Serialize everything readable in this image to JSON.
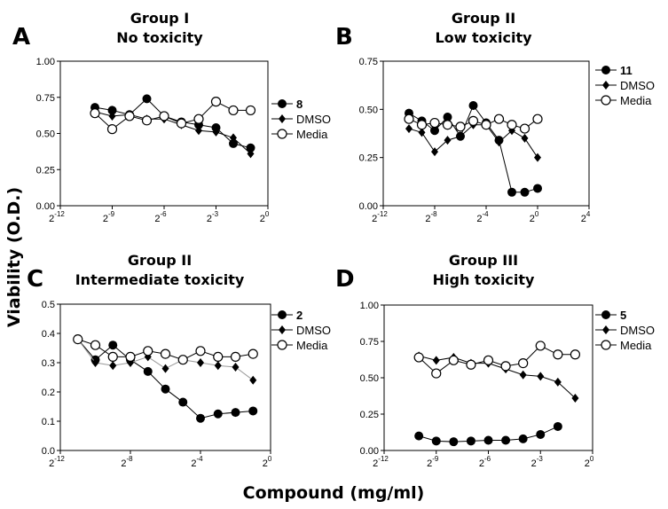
{
  "chart_data": [
    {
      "type": "line",
      "panel_letter": "A",
      "title": "Group I",
      "subtitle": "No toxicity",
      "xscale": "log2",
      "xlim_exp": [
        -12,
        0
      ],
      "xticks_exp": [
        -12,
        -9,
        -6,
        -3,
        0
      ],
      "ylim": [
        0,
        1
      ],
      "yticks": [
        "0.00",
        "0.25",
        "0.50",
        "0.75",
        "1.00"
      ],
      "x_exp": [
        -10,
        -9,
        -8,
        -7,
        -6,
        -5,
        -4,
        -3,
        -2,
        -1
      ],
      "series": [
        {
          "name": "8",
          "marker": "filled-circle",
          "values": [
            0.68,
            0.66,
            0.63,
            0.74,
            0.62,
            0.58,
            0.56,
            0.54,
            0.43,
            0.4
          ]
        },
        {
          "name": "DMSO",
          "marker": "diamond",
          "values": [
            0.65,
            0.62,
            0.63,
            0.6,
            0.6,
            0.56,
            0.52,
            0.51,
            0.47,
            0.36
          ]
        },
        {
          "name": "Media",
          "marker": "open-circle",
          "values": [
            0.64,
            0.53,
            0.62,
            0.59,
            0.62,
            0.57,
            0.6,
            0.72,
            0.66,
            0.66
          ]
        }
      ]
    },
    {
      "type": "line",
      "panel_letter": "B",
      "title": "Group II",
      "subtitle": "Low toxicity",
      "xscale": "log2",
      "xlim_exp": [
        -12,
        4
      ],
      "xticks_exp": [
        -12,
        -8,
        -4,
        0,
        4
      ],
      "ylim": [
        0,
        0.75
      ],
      "yticks": [
        "0.00",
        "0.25",
        "0.50",
        "0.75"
      ],
      "x_exp": [
        -10,
        -9,
        -8,
        -7,
        -6,
        -5,
        -4,
        -3,
        -2,
        -1,
        0
      ],
      "series": [
        {
          "name": "11",
          "marker": "filled-circle",
          "values": [
            0.48,
            0.44,
            0.39,
            0.46,
            0.36,
            0.52,
            0.43,
            0.34,
            0.07,
            0.07,
            0.09
          ]
        },
        {
          "name": "DMSO",
          "marker": "diamond",
          "values": [
            0.4,
            0.38,
            0.28,
            0.34,
            0.36,
            0.42,
            0.42,
            0.33,
            0.39,
            0.35,
            0.25
          ]
        },
        {
          "name": "Media",
          "marker": "open-circle",
          "values": [
            0.45,
            0.42,
            0.43,
            0.42,
            0.41,
            0.44,
            0.42,
            0.45,
            0.42,
            0.4,
            0.45
          ]
        }
      ]
    },
    {
      "type": "line",
      "panel_letter": "C",
      "title": "Group II",
      "subtitle": "Intermediate toxicity",
      "xscale": "log2",
      "xlim_exp": [
        -12,
        0
      ],
      "xticks_exp": [
        -12,
        -8,
        -4,
        0
      ],
      "ylim": [
        0,
        0.5
      ],
      "yticks": [
        "0.0",
        "0.1",
        "0.2",
        "0.3",
        "0.4",
        "0.5"
      ],
      "x_exp": [
        -11,
        -10,
        -9,
        -8,
        -7,
        -6,
        -5,
        -4,
        -3,
        -2,
        -1
      ],
      "series": [
        {
          "name": "2",
          "marker": "filled-circle",
          "values": [
            0.38,
            0.31,
            0.36,
            0.31,
            0.27,
            0.21,
            0.165,
            0.11,
            0.125,
            0.13,
            0.135
          ]
        },
        {
          "name": "DMSO",
          "marker": "diamond",
          "values": [
            0.38,
            0.3,
            0.29,
            0.3,
            0.32,
            0.28,
            0.31,
            0.3,
            0.29,
            0.285,
            0.24
          ]
        },
        {
          "name": "Media",
          "marker": "open-circle",
          "values": [
            0.38,
            0.36,
            0.32,
            0.32,
            0.34,
            0.33,
            0.31,
            0.34,
            0.32,
            0.32,
            0.33
          ]
        }
      ]
    },
    {
      "type": "line",
      "panel_letter": "D",
      "title": "Group III",
      "subtitle": "High toxicity",
      "xscale": "log2",
      "xlim_exp": [
        -12,
        0
      ],
      "xticks_exp": [
        -12,
        -9,
        -6,
        -3,
        0
      ],
      "ylim": [
        0,
        1
      ],
      "yticks": [
        "0.00",
        "0.25",
        "0.50",
        "0.75",
        "1.00"
      ],
      "x_exp": [
        -10,
        -9,
        -8,
        -7,
        -6,
        -5,
        -4,
        -3,
        -2,
        -1
      ],
      "series": [
        {
          "name": "5",
          "marker": "filled-circle",
          "values": [
            0.1,
            0.065,
            0.06,
            0.065,
            0.07,
            0.07,
            0.08,
            0.11,
            0.165,
            null
          ]
        },
        {
          "name": "DMSO",
          "marker": "diamond",
          "values": [
            0.65,
            0.62,
            0.64,
            0.6,
            0.6,
            0.56,
            0.52,
            0.51,
            0.47,
            0.36
          ]
        },
        {
          "name": "Media",
          "marker": "open-circle",
          "values": [
            0.64,
            0.53,
            0.62,
            0.59,
            0.62,
            0.58,
            0.6,
            0.72,
            0.66,
            0.66
          ]
        }
      ]
    }
  ],
  "ylabel": "Viability (O.D.)",
  "xlabel": "Compound (mg/ml)"
}
